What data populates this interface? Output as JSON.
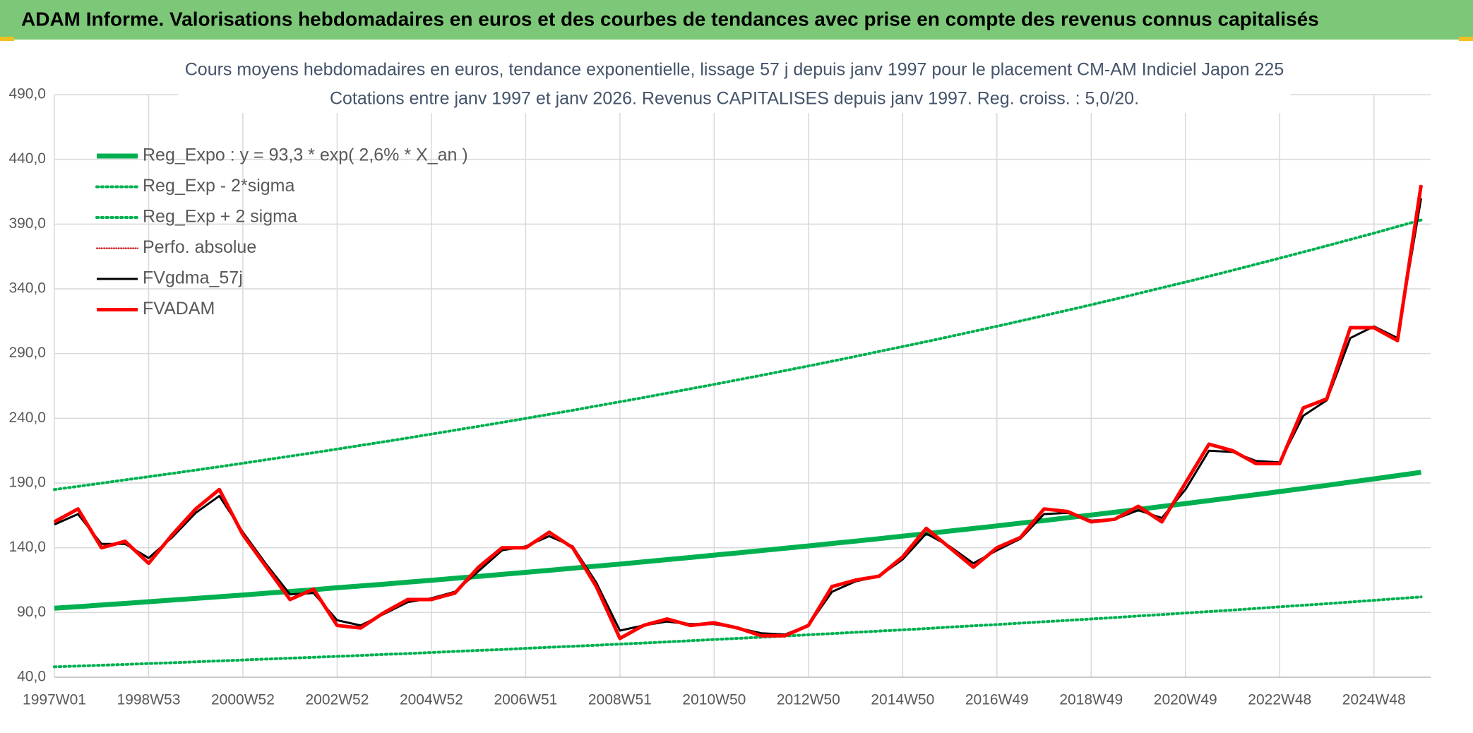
{
  "header": {
    "title": "ADAM Informe. Valorisations hebdomadaires en euros et des courbes de tendances avec prise en compte des revenus connus capitalisés"
  },
  "chart_data": {
    "type": "line",
    "title": "Cours moyens hebdomadaires en euros, tendance exponentielle, lissage 57 j depuis janv 1997 pour le placement CM-AM Indiciel Japon 225",
    "subtitle": "Cotations entre janv 1997 et janv 2026. Revenus CAPITALISES depuis janv 1997. Reg. croiss. : 5,0/20.",
    "categories": [
      "1997W01",
      null,
      null,
      null,
      "1998W53",
      null,
      null,
      null,
      "2000W52",
      null,
      null,
      null,
      "2002W52",
      null,
      null,
      null,
      "2004W52",
      null,
      null,
      null,
      "2006W51",
      null,
      null,
      null,
      "2008W51",
      null,
      null,
      null,
      "2010W50",
      null,
      null,
      null,
      "2012W50",
      null,
      null,
      null,
      "2014W50",
      null,
      null,
      null,
      "2016W49",
      null,
      null,
      null,
      "2018W49",
      null,
      null,
      null,
      "2020W49",
      null,
      null,
      null,
      "2022W48",
      null,
      null,
      null,
      "2024W48",
      null,
      null
    ],
    "ylim": [
      40,
      490
    ],
    "yticks": [
      {
        "value": 40,
        "label": "40,0"
      },
      {
        "value": 90,
        "label": "90,0"
      },
      {
        "value": 140,
        "label": "140,0"
      },
      {
        "value": 190,
        "label": "190,0"
      },
      {
        "value": 240,
        "label": "240,0"
      },
      {
        "value": 290,
        "label": "290,0"
      },
      {
        "value": 340,
        "label": "340,0"
      },
      {
        "value": 390,
        "label": "390,0"
      },
      {
        "value": 440,
        "label": "440,0"
      },
      {
        "value": 490,
        "label": "490,0"
      }
    ],
    "grid": true,
    "legend": "top-left",
    "series": [
      {
        "name": "Reg_Expo : y = 93,3 * exp( 2,6% *  X_an )",
        "color": "#00b050",
        "style": "solid",
        "width": 7,
        "values": [
          93.3,
          94.5,
          95.8,
          97.0,
          98.3,
          99.6,
          100.9,
          102.2,
          103.5,
          104.9,
          106.2,
          107.6,
          109.1,
          110.5,
          111.9,
          113.4,
          114.9,
          116.4,
          117.9,
          119.4,
          121.0,
          122.6,
          124.2,
          125.8,
          127.4,
          129.1,
          130.8,
          132.5,
          134.3,
          136.0,
          137.8,
          139.6,
          141.4,
          143.3,
          145.1,
          147.0,
          149.0,
          150.9,
          152.9,
          154.9,
          156.9,
          159.0,
          161.0,
          163.2,
          165.3,
          167.4,
          169.6,
          171.9,
          174.1,
          176.4,
          178.7,
          181.0,
          183.4,
          185.8,
          188.2,
          190.7,
          193.2,
          195.7,
          198.3
        ]
      },
      {
        "name": "Reg_Exp - 2*sigma",
        "color": "#00b050",
        "style": "dotted",
        "width": 4,
        "values": [
          48.0,
          48.6,
          49.3,
          49.9,
          50.6,
          51.2,
          51.9,
          52.6,
          53.3,
          54.0,
          54.7,
          55.4,
          56.1,
          56.8,
          57.6,
          58.3,
          59.1,
          59.9,
          60.7,
          61.4,
          62.3,
          63.1,
          63.9,
          64.7,
          65.6,
          66.4,
          67.3,
          68.2,
          69.1,
          70.0,
          70.9,
          71.8,
          72.8,
          73.7,
          74.7,
          75.6,
          76.6,
          77.6,
          78.7,
          79.7,
          80.7,
          81.8,
          82.9,
          83.9,
          85.0,
          86.1,
          87.3,
          88.4,
          89.6,
          90.7,
          91.9,
          93.1,
          94.4,
          95.6,
          96.8,
          98.1,
          99.4,
          100.7,
          102.0
        ]
      },
      {
        "name": "Reg_Exp + 2 sigma",
        "color": "#00b050",
        "style": "dotted",
        "width": 4,
        "values": [
          185.0,
          187.4,
          189.9,
          192.4,
          194.9,
          197.4,
          200.0,
          202.6,
          205.3,
          208.0,
          210.7,
          213.4,
          216.2,
          219.1,
          221.9,
          224.8,
          227.8,
          230.8,
          233.8,
          236.8,
          239.9,
          243.1,
          246.2,
          249.5,
          252.7,
          256.0,
          259.4,
          262.8,
          266.2,
          269.7,
          273.2,
          276.8,
          280.4,
          284.1,
          287.8,
          291.6,
          295.4,
          299.2,
          303.1,
          307.1,
          311.1,
          315.2,
          319.3,
          323.5,
          327.7,
          332.0,
          336.4,
          340.8,
          345.2,
          349.7,
          354.3,
          359.0,
          363.7,
          368.4,
          373.2,
          378.1,
          383.0,
          388.1,
          393.1
        ]
      },
      {
        "name": "Perfo. absolue",
        "color": "#c00000",
        "style": "dotted",
        "width": 2,
        "values": [
          160,
          170,
          140,
          145,
          128,
          150,
          170,
          185,
          150,
          125,
          100,
          108,
          80,
          78,
          90,
          100,
          100,
          105,
          125,
          140,
          140,
          152,
          140,
          110,
          70,
          80,
          85,
          80,
          82,
          78,
          72,
          72,
          80,
          110,
          115,
          118,
          133,
          155,
          140,
          125,
          140,
          148,
          170,
          168,
          160,
          162,
          172,
          160,
          190,
          220,
          215,
          205,
          205,
          248,
          255,
          310,
          310,
          300,
          420
        ]
      },
      {
        "name": "FVgdma_57j",
        "color": "#000000",
        "style": "solid",
        "width": 3,
        "values": [
          158,
          166,
          143,
          143,
          132,
          148,
          167,
          180,
          152,
          127,
          104,
          105,
          84,
          80,
          89,
          98,
          101,
          106,
          122,
          138,
          141,
          149,
          141,
          113,
          76,
          80,
          83,
          81,
          81,
          78,
          74,
          73,
          80,
          106,
          114,
          118,
          131,
          151,
          141,
          128,
          138,
          147,
          166,
          167,
          161,
          162,
          169,
          163,
          185,
          215,
          214,
          207,
          206,
          242,
          254,
          302,
          311,
          302,
          410
        ]
      },
      {
        "name": "FVADAM",
        "color": "#ff0000",
        "style": "solid",
        "width": 5,
        "values": [
          160,
          170,
          140,
          145,
          128,
          150,
          170,
          185,
          150,
          125,
          100,
          108,
          80,
          78,
          90,
          100,
          100,
          105,
          125,
          140,
          140,
          152,
          140,
          110,
          70,
          80,
          85,
          80,
          82,
          78,
          72,
          72,
          80,
          110,
          115,
          118,
          133,
          155,
          140,
          125,
          140,
          148,
          170,
          168,
          160,
          162,
          172,
          160,
          190,
          220,
          215,
          205,
          205,
          248,
          255,
          310,
          310,
          300,
          420
        ]
      }
    ]
  }
}
